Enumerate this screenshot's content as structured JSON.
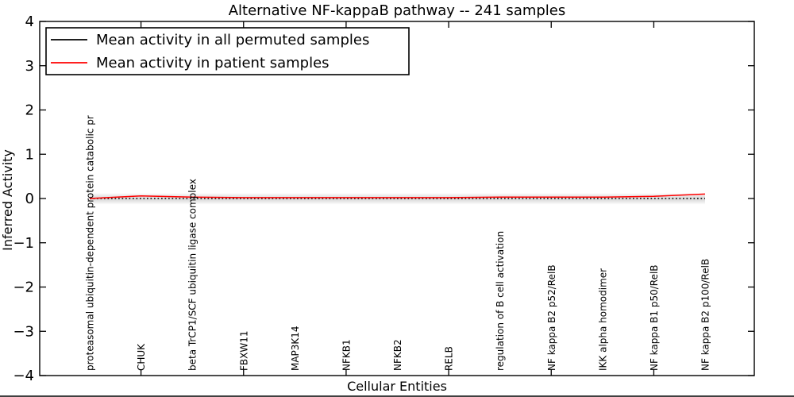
{
  "chart_data": {
    "type": "line",
    "title": "Alternative NF-kappaB pathway -- 241 samples",
    "xlabel": "Cellular Entities",
    "ylabel": "Inferred Activity",
    "ylim": [
      -4,
      4
    ],
    "grid": false,
    "background": "#ffffff",
    "legend": {
      "position": "upper-left"
    },
    "yticks": [
      {
        "value": 4,
        "label": "4"
      },
      {
        "value": 3,
        "label": "3"
      },
      {
        "value": 2,
        "label": "2"
      },
      {
        "value": 1,
        "label": "1"
      },
      {
        "value": 0,
        "label": "0"
      },
      {
        "value": -1,
        "label": "−1"
      },
      {
        "value": -2,
        "label": "−2"
      },
      {
        "value": -3,
        "label": "−3"
      },
      {
        "value": -4,
        "label": "−4"
      }
    ],
    "xtick_indices": [
      1,
      3,
      5,
      7,
      9,
      11
    ],
    "categories": [
      "proteasomal ubiquitin-dependent protein catabolic pr",
      "CHUK",
      "beta TrCP1/SCF ubiquitin ligase complex",
      "FBXW11",
      "MAP3K14",
      "NFKB1",
      "NFKB2",
      "RELB",
      "regulation of B cell activation",
      "NF kappa B2 p52/RelB",
      "IKK alpha homodimer",
      "NF kappa B1 p50/RelB",
      "NF kappa B2 p100/RelB"
    ],
    "series": [
      {
        "id": "permuted",
        "name": "Mean activity in all permuted samples",
        "color": "#000000",
        "line_style": "dotted",
        "values": [
          0,
          0,
          0,
          0,
          0,
          0,
          0,
          0,
          0,
          0,
          0,
          0,
          0
        ]
      },
      {
        "id": "patient",
        "name": "Mean activity in patient samples",
        "color": "#ff0000",
        "line_style": "solid",
        "values": [
          0,
          0.06,
          0.03,
          0.02,
          0.02,
          0.02,
          0.02,
          0.02,
          0.03,
          0.03,
          0.03,
          0.05,
          0.1
        ]
      }
    ],
    "band": {
      "name": "permuted-samples-spread",
      "color": "#d4d4d4",
      "range": [
        -0.13,
        0.12
      ]
    }
  }
}
